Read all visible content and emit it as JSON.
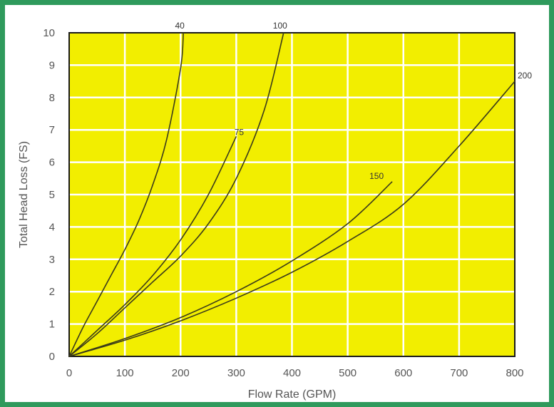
{
  "chart_data": {
    "type": "line",
    "title": "",
    "xlabel": "Flow Rate (GPM)",
    "ylabel": "Total Head Loss (FS)",
    "xlim": [
      0,
      800
    ],
    "ylim": [
      0,
      10
    ],
    "x_ticks": [
      "0",
      "100",
      "200",
      "300",
      "400",
      "500",
      "600",
      "700",
      "800"
    ],
    "y_ticks": [
      "0",
      "1",
      "2",
      "3",
      "4",
      "5",
      "6",
      "7",
      "8",
      "9",
      "10"
    ],
    "grid": true,
    "legend": "none",
    "series": [
      {
        "name": "40",
        "x": [
          0,
          25,
          50,
          75,
          100,
          125,
          150,
          175,
          200,
          205
        ],
        "y": [
          0,
          0.9,
          1.7,
          2.5,
          3.3,
          4.2,
          5.3,
          6.7,
          8.9,
          10
        ]
      },
      {
        "name": "75",
        "x": [
          0,
          50,
          100,
          150,
          200,
          250,
          300
        ],
        "y": [
          0,
          0.8,
          1.6,
          2.5,
          3.6,
          5.0,
          6.8
        ]
      },
      {
        "name": "100",
        "x": [
          0,
          50,
          100,
          150,
          200,
          250,
          300,
          350,
          385
        ],
        "y": [
          0,
          0.7,
          1.5,
          2.3,
          3.1,
          4.1,
          5.5,
          7.6,
          10
        ]
      },
      {
        "name": "150",
        "x": [
          0,
          100,
          200,
          300,
          400,
          500,
          580
        ],
        "y": [
          0,
          0.55,
          1.2,
          2.0,
          2.95,
          4.1,
          5.4
        ]
      },
      {
        "name": "200",
        "x": [
          0,
          100,
          200,
          300,
          400,
          500,
          600,
          700,
          800
        ],
        "y": [
          0,
          0.5,
          1.1,
          1.8,
          2.6,
          3.55,
          4.7,
          6.5,
          8.5
        ]
      }
    ],
    "colors": {
      "plot_bg": "#f2ee00",
      "grid": "#ffffff",
      "curve": "#3a3a1a",
      "border": "#2f9a5c",
      "text": "#555555"
    }
  }
}
